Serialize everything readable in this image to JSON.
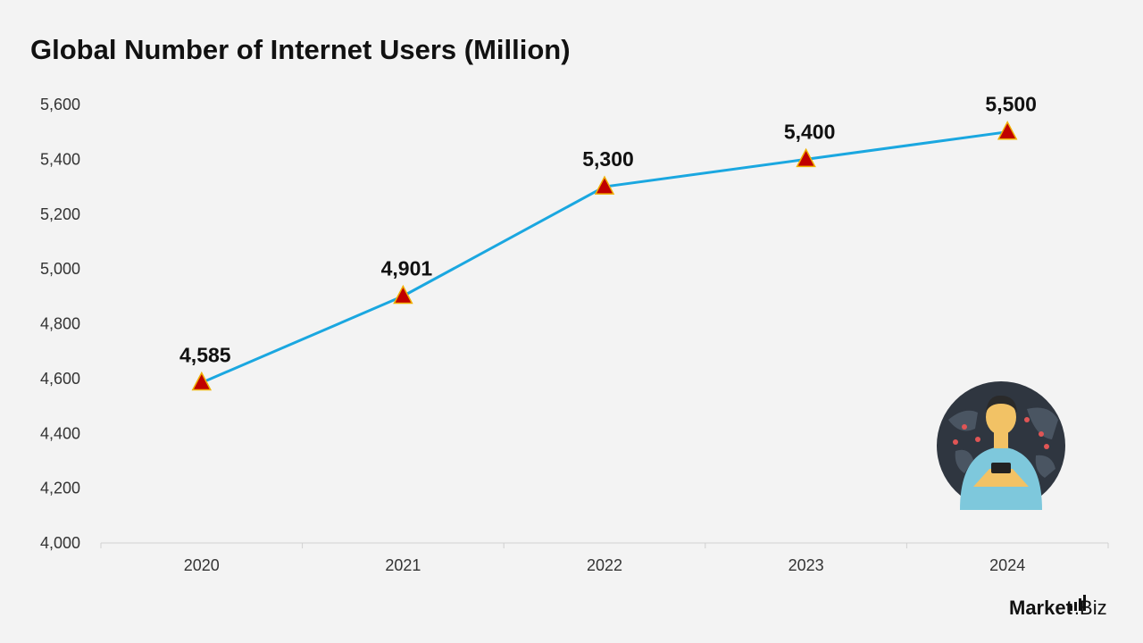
{
  "title": "Global Number of Internet Users (Million)",
  "brand": {
    "part1": "Market",
    "part2": ".Biz"
  },
  "chart_data": {
    "type": "line",
    "title": "Global Number of Internet Users (Million)",
    "categories": [
      "2020",
      "2021",
      "2022",
      "2023",
      "2024"
    ],
    "series": [
      {
        "values": [
          4585,
          4901,
          5300,
          5400,
          5500
        ],
        "color": "#1aa7e0",
        "marker": "triangle",
        "marker_color": "#c00000"
      }
    ],
    "data_labels": [
      "4,585",
      "4,901",
      "5,300",
      "5,400",
      "5,500"
    ],
    "y_ticks": [
      "4,000",
      "4,200",
      "4,400",
      "4,600",
      "4,800",
      "5,000",
      "5,200",
      "5,400",
      "5,600"
    ],
    "ylim": [
      4000,
      5600
    ],
    "grid": false,
    "legend": "none",
    "illustration": "person-with-phone-globe-icon"
  }
}
